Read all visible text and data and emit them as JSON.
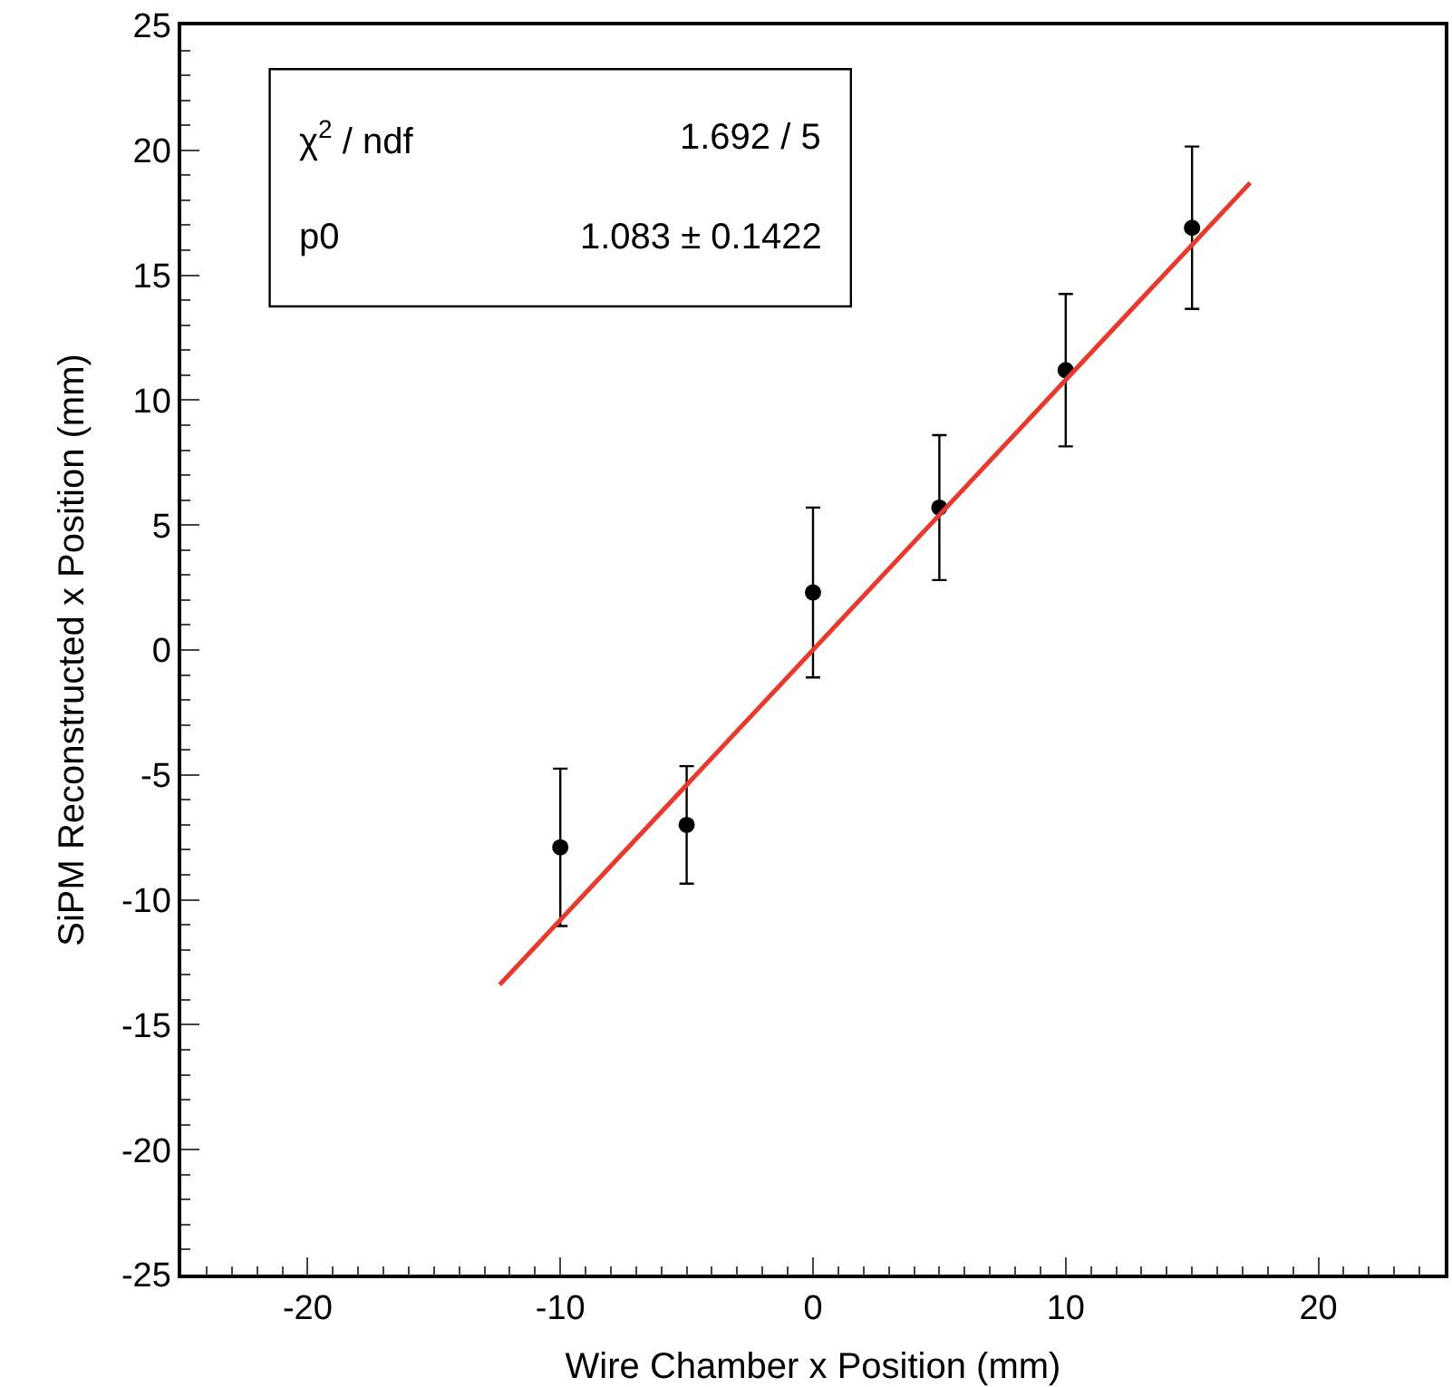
{
  "chart_data": {
    "type": "scatter",
    "xlabel": "Wire Chamber x Position (mm)",
    "ylabel": "SiPM Reconstructed x Position (mm)",
    "x": [
      -10,
      -5,
      0,
      5,
      10,
      15
    ],
    "series": [
      {
        "color": "#000000",
        "values": [
          -7.9,
          -7.0,
          2.3,
          5.7,
          11.2,
          16.9
        ],
        "errors": [
          3.15,
          2.35,
          3.4,
          2.9,
          3.05,
          3.25
        ],
        "marker": "circle"
      },
      {
        "type": "line",
        "color": "#e8392c",
        "x": [
          -12.4,
          17.3
        ],
        "values": [
          -13.4,
          18.7
        ],
        "line_style": "solid"
      }
    ],
    "xlim": [
      -25,
      25
    ],
    "xticks": [
      -20,
      -10,
      0,
      10,
      20
    ],
    "ylim": [
      -25,
      25
    ],
    "yticks": [
      -25,
      -20,
      -15,
      -10,
      -5,
      0,
      5,
      10,
      15,
      20,
      25
    ],
    "annotations": [
      "χ$^{2}$ / ndf",
      "1.692 / 5",
      "p0",
      "1.083 ± 0.1422"
    ]
  }
}
